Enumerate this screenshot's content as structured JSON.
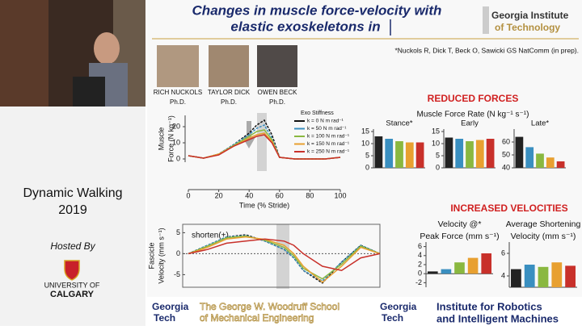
{
  "sidebar": {
    "event": "Dynamic Walking",
    "year": "2019",
    "hosted_by": "Hosted By",
    "university_of": "UNIVERSITY OF",
    "calgary": "CALGARY"
  },
  "slide": {
    "title_line1": "Changes in muscle force-velocity with",
    "title_line2": "elastic exoskeletons in",
    "logo_line1": "Georgia Institute",
    "logo_line2": "of Technology",
    "people": [
      {
        "name": "RICH NUCKOLS",
        "degree": "Ph.D."
      },
      {
        "name": "TAYLOR DICK",
        "degree": "Ph.D."
      },
      {
        "name": "OWEN BECK",
        "degree": "Ph.D."
      }
    ],
    "citation": "*Nuckols R, Dick T, Beck O, Sawicki GS NatComm (in prep).",
    "reduced_forces": "REDUCED FORCES",
    "force_rate_label": "Muscle Force Rate (N kg⁻¹ s⁻¹)",
    "increased_velocities": "INCREASED VELOCITIES",
    "footer": {
      "gt_line1": "Georgia",
      "gt_line2": "Tech",
      "woodruff_line1": "The George W. Woodruff School",
      "woodruff_line2": "of Mechanical Engineering",
      "gt2_line1": "Georgia",
      "gt2_line2": "Tech",
      "irim_line1": "Institute for Robotics",
      "irim_line2": "and Intelligent Machines"
    }
  },
  "chart_data": [
    {
      "type": "line",
      "ylabel": [
        "Muscle",
        "Force (N kg⁻¹)"
      ],
      "xlabel": "Time (% Stride)",
      "legend_title": "Exo Stiffness",
      "x": [
        0,
        10,
        20,
        30,
        40,
        45,
        50,
        55,
        60,
        70,
        80,
        90,
        100
      ],
      "xlim": [
        0,
        100
      ],
      "xticks": [
        0,
        20,
        40,
        60,
        80,
        100
      ],
      "ylim": [
        -2,
        27
      ],
      "yticks": [
        0,
        10,
        20
      ],
      "series": [
        {
          "name": "k = 0 N m rad⁻¹",
          "color": "#111111",
          "values": [
            2,
            0.5,
            3,
            9,
            16,
            21,
            24,
            15,
            1,
            0,
            0,
            0,
            1
          ]
        },
        {
          "name": "k = 50 N m rad⁻¹",
          "color": "#3a8fc0",
          "values": [
            2,
            0.5,
            3,
            9,
            15,
            19,
            21,
            13,
            1,
            0,
            0,
            0,
            1
          ]
        },
        {
          "name": "k = 100 N m rad⁻¹",
          "color": "#8ab840",
          "values": [
            2,
            0.5,
            3,
            8.5,
            14,
            17,
            18,
            12,
            1,
            0,
            0,
            0,
            1
          ]
        },
        {
          "name": "k = 150 N m rad⁻¹",
          "color": "#e8a030",
          "values": [
            2,
            0.5,
            3,
            8,
            13,
            15,
            16,
            11,
            1,
            0,
            0,
            0,
            1
          ]
        },
        {
          "name": "k = 250 N m rad⁻¹",
          "color": "#c8302a",
          "values": [
            2,
            0.5,
            2.5,
            8,
            12,
            14,
            15,
            10,
            1,
            0,
            0,
            0,
            1
          ]
        }
      ]
    },
    {
      "type": "line",
      "ylabel": [
        "Fascicle",
        "Velocity (mm s⁻¹)"
      ],
      "annotation": "shorten(+)",
      "x": [
        0,
        10,
        20,
        30,
        40,
        50,
        55,
        60,
        70,
        80,
        90,
        100
      ],
      "xlim": [
        0,
        100
      ],
      "ylim": [
        -8,
        7
      ],
      "yticks": [
        -5,
        0,
        5
      ],
      "series": [
        {
          "color": "#111111",
          "values": [
            0,
            2,
            4,
            4.5,
            3,
            1,
            -1,
            -4,
            -7,
            -2,
            2,
            0
          ]
        },
        {
          "color": "#3a8fc0",
          "values": [
            0,
            2,
            4,
            4.3,
            3,
            1,
            -1,
            -4,
            -6.5,
            -2,
            2,
            0
          ]
        },
        {
          "color": "#8ab840",
          "values": [
            0,
            1.8,
            3.8,
            4.2,
            3.2,
            1.5,
            -0.5,
            -3.5,
            -6,
            -2.5,
            1.8,
            0
          ]
        },
        {
          "color": "#e8a030",
          "values": [
            0,
            1.5,
            3.5,
            4,
            3.4,
            2,
            0,
            -3,
            -6.8,
            -3,
            1.5,
            0
          ]
        },
        {
          "color": "#c8302a",
          "values": [
            0,
            1,
            2.5,
            3,
            3.5,
            3,
            2,
            0,
            -3,
            -4,
            -1,
            0
          ]
        }
      ]
    },
    {
      "type": "bar",
      "title": [
        "Stance*"
      ],
      "ylim": [
        0,
        16
      ],
      "yticks": [
        0,
        5,
        10,
        15
      ],
      "colors": [
        "#222222",
        "#3a8fc0",
        "#8ab840",
        "#e8a030",
        "#c8302a"
      ],
      "values": [
        13,
        12,
        11,
        10.5,
        10.5
      ]
    },
    {
      "type": "bar",
      "title": [
        "Early"
      ],
      "ylim": [
        0,
        16
      ],
      "yticks": [
        0,
        5,
        10,
        15
      ],
      "colors": [
        "#222222",
        "#3a8fc0",
        "#8ab840",
        "#e8a030",
        "#c8302a"
      ],
      "values": [
        12.5,
        12,
        11,
        11.5,
        12
      ]
    },
    {
      "type": "bar",
      "title": [
        "Late*"
      ],
      "ylim": [
        40,
        70
      ],
      "yticks": [
        40,
        50,
        60
      ],
      "colors": [
        "#222222",
        "#3a8fc0",
        "#8ab840",
        "#e8a030",
        "#c8302a"
      ],
      "values": [
        64,
        56,
        51,
        48,
        45
      ]
    },
    {
      "type": "bar",
      "title": [
        "Velocity @*",
        "Peak Force (mm s⁻¹)"
      ],
      "ylim": [
        -3,
        7
      ],
      "yticks": [
        -2,
        0,
        2,
        4,
        6
      ],
      "colors": [
        "#222222",
        "#3a8fc0",
        "#8ab840",
        "#e8a030",
        "#c8302a"
      ],
      "values": [
        0.5,
        1,
        2.5,
        3.5,
        4.5
      ]
    },
    {
      "type": "bar",
      "title": [
        "Average Shortening",
        "Velocity (mm s⁻¹)"
      ],
      "ylim": [
        3,
        7
      ],
      "yticks": [
        4,
        6
      ],
      "colors": [
        "#222222",
        "#3a8fc0",
        "#8ab840",
        "#e8a030",
        "#c8302a"
      ],
      "values": [
        4.6,
        5,
        4.8,
        5.2,
        4.9
      ]
    }
  ]
}
